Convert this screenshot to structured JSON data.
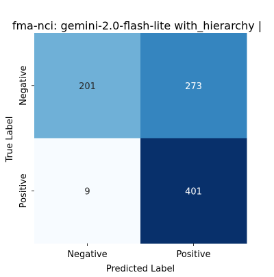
{
  "chart_data": {
    "type": "heatmap",
    "title": "fma-nci: gemini-2.0-flash-lite with_hierarchy |",
    "xlabel": "Predicted Label",
    "ylabel": "True Label",
    "x_categories": [
      "Negative",
      "Positive"
    ],
    "y_categories": [
      "Negative",
      "Positive"
    ],
    "values": [
      [
        201,
        273
      ],
      [
        9,
        401
      ]
    ],
    "colormap": "Blues",
    "colors": {
      "low": "#f7fbff",
      "high": "#08306b"
    },
    "colorbar": false,
    "grid": false,
    "legend": "none"
  }
}
